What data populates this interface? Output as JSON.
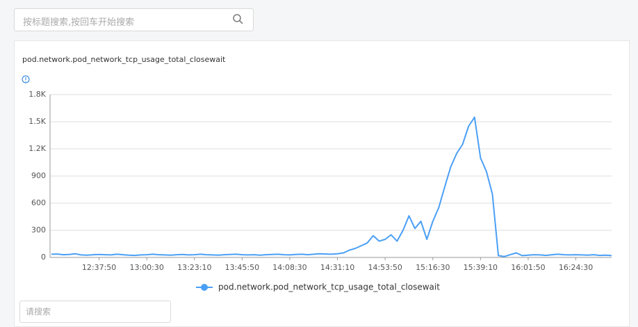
{
  "search_placeholder": "按标题搜索,按回车开始搜索",
  "filter_placeholder": "请搜索",
  "chart_data": {
    "type": "line",
    "title": "pod.network.pod_network_tcp_usage_total_closewait",
    "categories": [
      null,
      null,
      null,
      null,
      null,
      null,
      null,
      null,
      "12:37:50",
      null,
      null,
      null,
      null,
      null,
      null,
      null,
      "13:00:30",
      null,
      null,
      null,
      null,
      null,
      null,
      null,
      "13:23:10",
      null,
      null,
      null,
      null,
      null,
      null,
      null,
      "13:45:50",
      null,
      null,
      null,
      null,
      null,
      null,
      null,
      "14:08:30",
      null,
      null,
      null,
      null,
      null,
      null,
      null,
      "14:31:10",
      null,
      null,
      null,
      null,
      null,
      null,
      null,
      "14:53:50",
      null,
      null,
      null,
      null,
      null,
      null,
      null,
      "15:16:30",
      null,
      null,
      null,
      null,
      null,
      null,
      null,
      "15:39:10",
      null,
      null,
      null,
      null,
      null,
      null,
      null,
      "16:01:50",
      null,
      null,
      null,
      null,
      null,
      null,
      null,
      "16:24:30",
      null,
      null,
      null,
      null,
      null,
      null
    ],
    "series": [
      {
        "name": "pod.network.pod_network_tcp_usage_total_closewait",
        "color": "#4a9ff5",
        "values": [
          35,
          38,
          30,
          32,
          40,
          28,
          25,
          30,
          33,
          30,
          28,
          35,
          30,
          25,
          22,
          28,
          30,
          35,
          30,
          28,
          25,
          30,
          32,
          28,
          30,
          35,
          30,
          28,
          25,
          30,
          32,
          35,
          30,
          28,
          30,
          25,
          30,
          32,
          35,
          30,
          28,
          32,
          35,
          30,
          35,
          40,
          38,
          35,
          40,
          50,
          80,
          100,
          130,
          160,
          240,
          180,
          200,
          250,
          180,
          300,
          460,
          320,
          400,
          200,
          400,
          550,
          780,
          1000,
          1150,
          1250,
          1450,
          1550,
          1100,
          950,
          700,
          20,
          10,
          30,
          50,
          20,
          25,
          30,
          28,
          22,
          30,
          35,
          30,
          28,
          30,
          28,
          25,
          30,
          22,
          25,
          20
        ]
      }
    ],
    "ylim": [
      0,
      1800
    ],
    "yticks": [
      0,
      300,
      600,
      900,
      {
        "value": 1200,
        "label": "1.2K"
      },
      {
        "value": 1500,
        "label": "1.5K"
      },
      {
        "value": 1800,
        "label": "1.8K"
      }
    ],
    "grid": true
  }
}
